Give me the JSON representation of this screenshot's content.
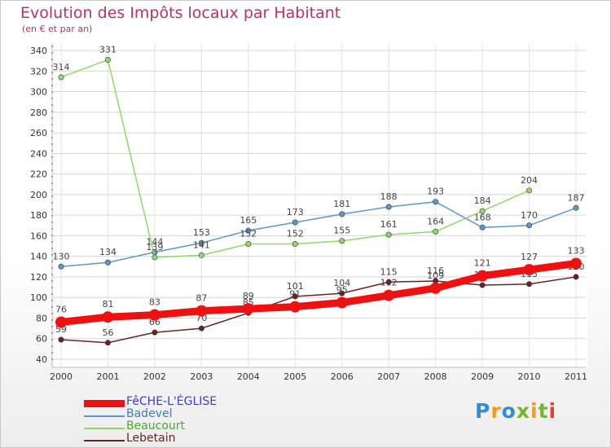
{
  "header": {
    "title": "Evolution des Impôts locaux par Habitant",
    "subtitle": "(en € et par an)"
  },
  "logo": {
    "text": "Proxiti",
    "colors": [
      "#2f8fd6",
      "#f29a1f",
      "#2f8fd6",
      "#7ab531",
      "#f29a1f",
      "#7ab531",
      "#e0442c"
    ]
  },
  "chart_data": {
    "type": "line",
    "title": "Evolution des Impôts locaux par Habitant",
    "subtitle": "(en € et par an)",
    "xlabel": "",
    "ylabel": "",
    "categories": [
      "2000",
      "2001",
      "2002",
      "2003",
      "2004",
      "2005",
      "2006",
      "2007",
      "2008",
      "2009",
      "2010",
      "2011"
    ],
    "ylim": [
      40,
      340
    ],
    "yticks": [
      40,
      60,
      80,
      100,
      120,
      140,
      160,
      180,
      200,
      220,
      240,
      260,
      280,
      300,
      320,
      340
    ],
    "grid": true,
    "legend_position": "bottom-left",
    "series": [
      {
        "name": "Badevel",
        "color": "#5b98c8",
        "bold": false,
        "values": [
          130,
          134,
          144,
          153,
          165,
          173,
          181,
          188,
          193,
          168,
          170,
          187
        ]
      },
      {
        "name": "Beaucourt",
        "color": "#90d86a",
        "bold": false,
        "values": [
          314,
          331,
          139,
          141,
          152,
          152,
          155,
          161,
          164,
          184,
          204,
          null
        ]
      },
      {
        "name": "Lebetain",
        "color": "#6b2222",
        "bold": false,
        "values": [
          59,
          56,
          66,
          70,
          85,
          101,
          104,
          115,
          116,
          112,
          113,
          120
        ]
      },
      {
        "name": "FêCHE-L'ÉGLISE",
        "color": "#ee1111",
        "bold": true,
        "values": [
          76,
          81,
          83,
          87,
          89,
          91,
          95,
          102,
          109,
          121,
          127,
          133
        ]
      }
    ]
  }
}
